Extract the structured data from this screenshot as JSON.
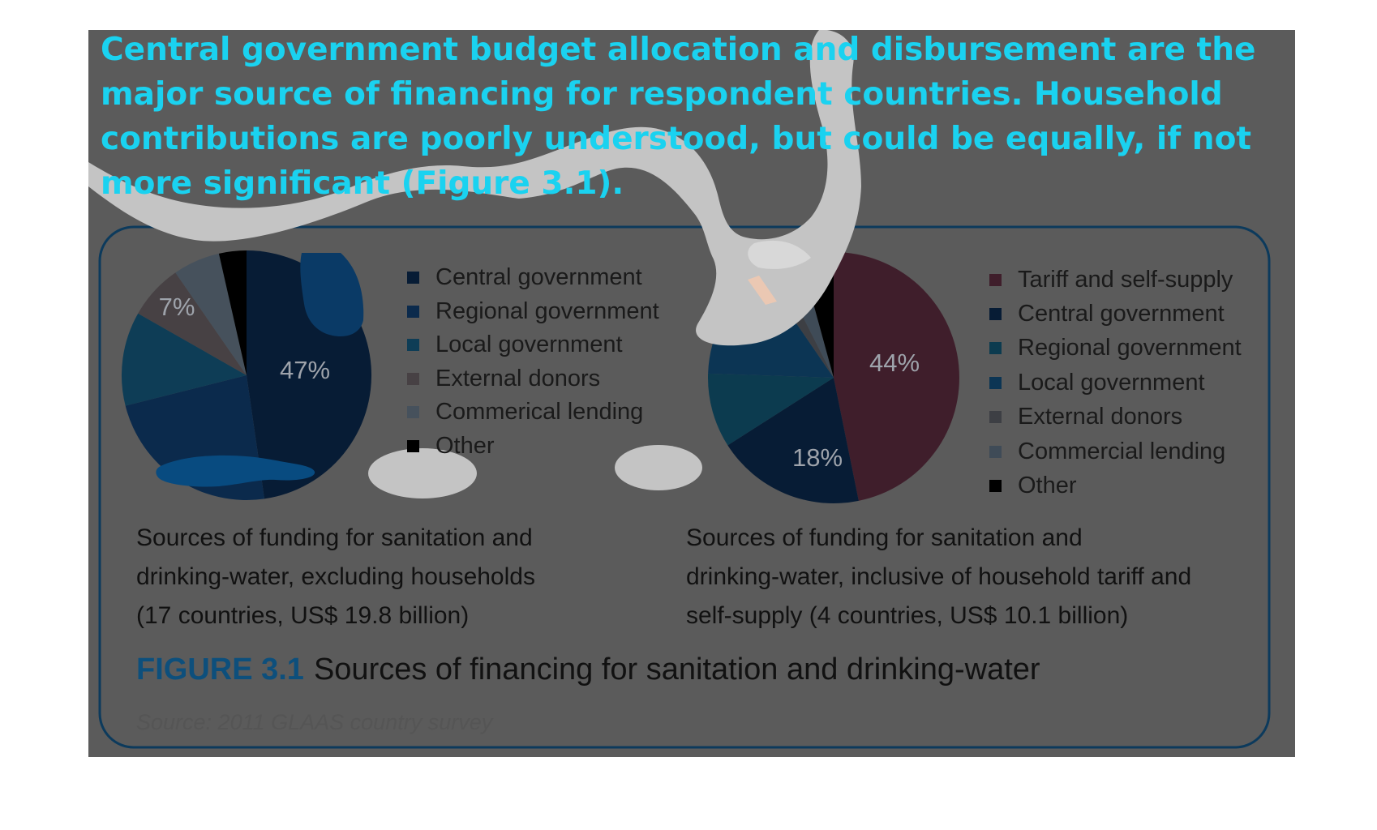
{
  "headline": {
    "lines": [
      "Central government budget allocation and disbursement are the",
      "major source of financing for respondent countries. Household",
      "contributions are poorly understood, but could be equally, if not",
      "more significant (Figure 3.1)."
    ]
  },
  "colors": {
    "overlay": "#5b5b5b",
    "blob": "#c0c0c0",
    "frame_border": "#0c3a5c",
    "headline": "#1ad2f0",
    "figure_number": "#0d4f7c"
  },
  "chart_data": [
    {
      "type": "pie",
      "title": "",
      "caption_lines": [
        "Sources of funding for sanitation and",
        "drinking-water, excluding households",
        "(17 countries, US$ 19.8 billion)"
      ],
      "legend_position": "right",
      "slices": [
        {
          "label": "Central government",
          "value": 47,
          "color": "#071c35",
          "data_label": "47%"
        },
        {
          "label": "Regional government",
          "value": 23,
          "color": "#0b2a4c",
          "data_label": ""
        },
        {
          "label": "Local government",
          "value": 12,
          "color": "#0e3d56",
          "data_label": ""
        },
        {
          "label": "External donors",
          "value": 7,
          "color": "#474144",
          "data_label": "7%"
        },
        {
          "label": "Commerical lending",
          "value": 6,
          "color": "#46515c",
          "data_label": ""
        },
        {
          "label": "Other",
          "value": 3.5,
          "color": "#000000",
          "data_label": ""
        }
      ]
    },
    {
      "type": "pie",
      "title": "",
      "caption_lines": [
        "Sources of funding for sanitation and",
        "drinking-water, inclusive of household tariff and",
        "self-supply (4 countries, US$ 10.1 billion)"
      ],
      "legend_position": "right",
      "slices": [
        {
          "label": "Tariff and self-supply",
          "value": 44,
          "color": "#3f1e2b",
          "data_label": "44%"
        },
        {
          "label": "Central government",
          "value": 18,
          "color": "#071c35",
          "data_label": "18%"
        },
        {
          "label": "Regional government",
          "value": 9,
          "color": "#0c3b4f",
          "data_label": ""
        },
        {
          "label": "Local government",
          "value": 14,
          "color": "#0c3554",
          "data_label": ""
        },
        {
          "label": "External donors",
          "value": 2,
          "color": "#3d3f44",
          "data_label": ""
        },
        {
          "label": "Commercial lending",
          "value": 3,
          "color": "#3f4b57",
          "data_label": ""
        },
        {
          "label": "Other",
          "value": 4,
          "color": "#000000",
          "data_label": ""
        }
      ]
    }
  ],
  "figure": {
    "number": "FIGURE 3.1",
    "title": "Sources of financing for sanitation and drinking-water",
    "source": "Source: 2011 GLAAS country survey"
  }
}
